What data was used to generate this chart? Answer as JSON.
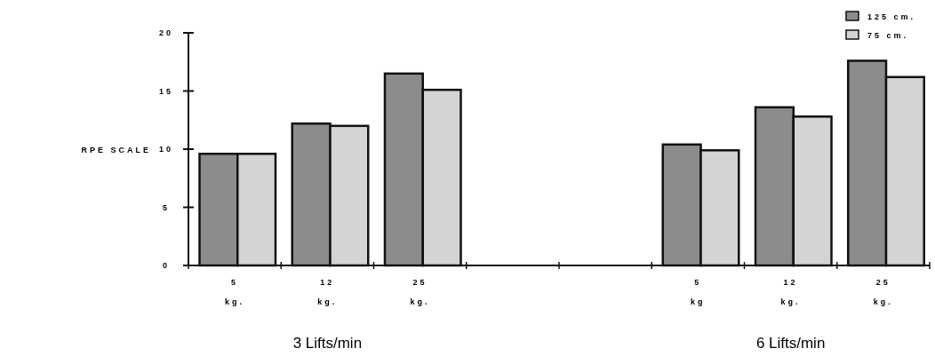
{
  "chart_data": {
    "type": "bar",
    "ylabel": "RPE SCALE",
    "categories": [
      "5 kg.",
      "12 kg.",
      "25 kg.",
      null,
      null,
      "5 kg",
      "12 kg.",
      "25 kg."
    ],
    "series": [
      {
        "name": "125 cm.",
        "color": "#8c8c8c",
        "values": [
          9.6,
          12.2,
          16.5,
          null,
          null,
          10.4,
          13.6,
          17.6
        ]
      },
      {
        "name": "75 cm.",
        "color": "#d4d4d4",
        "values": [
          9.6,
          12.0,
          15.1,
          null,
          null,
          9.9,
          12.8,
          16.2
        ]
      }
    ],
    "ylim": [
      0,
      20
    ],
    "yticks": [
      0,
      5,
      10,
      15,
      20
    ],
    "grid": false,
    "legend": "top right",
    "annotations": [
      "3 Lifts/min",
      "6 Lifts/min"
    ]
  }
}
